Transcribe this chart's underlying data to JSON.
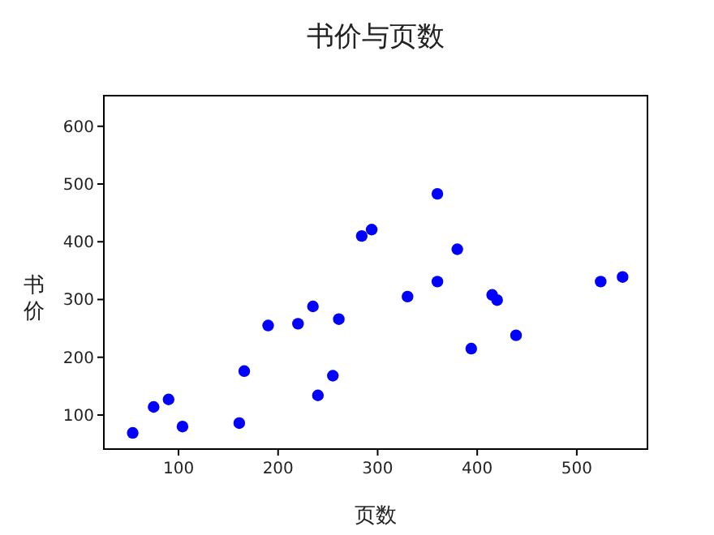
{
  "chart_data": {
    "type": "scatter",
    "title": "书价与页数",
    "xlabel": "页数",
    "ylabel": "书价",
    "x": [
      54,
      75,
      90,
      104,
      161,
      166,
      190,
      220,
      235,
      240,
      255,
      261,
      284,
      294,
      330,
      360,
      360,
      380,
      394,
      415,
      420,
      439,
      524,
      546
    ],
    "series": [
      {
        "color": "#0000ff",
        "values": [
          69,
          114,
          127,
          80,
          86,
          176,
          255,
          258,
          288,
          134,
          168,
          266,
          410,
          421,
          305,
          483,
          331,
          387,
          215,
          308,
          299,
          238,
          331,
          339
        ]
      }
    ],
    "xlim": [
      25,
      571
    ],
    "ylim": [
      41,
      653
    ],
    "xticks": [
      100,
      200,
      300,
      400,
      500
    ],
    "yticks": [
      100,
      200,
      300,
      400,
      500,
      600
    ],
    "marker": "circle",
    "grid": false
  }
}
